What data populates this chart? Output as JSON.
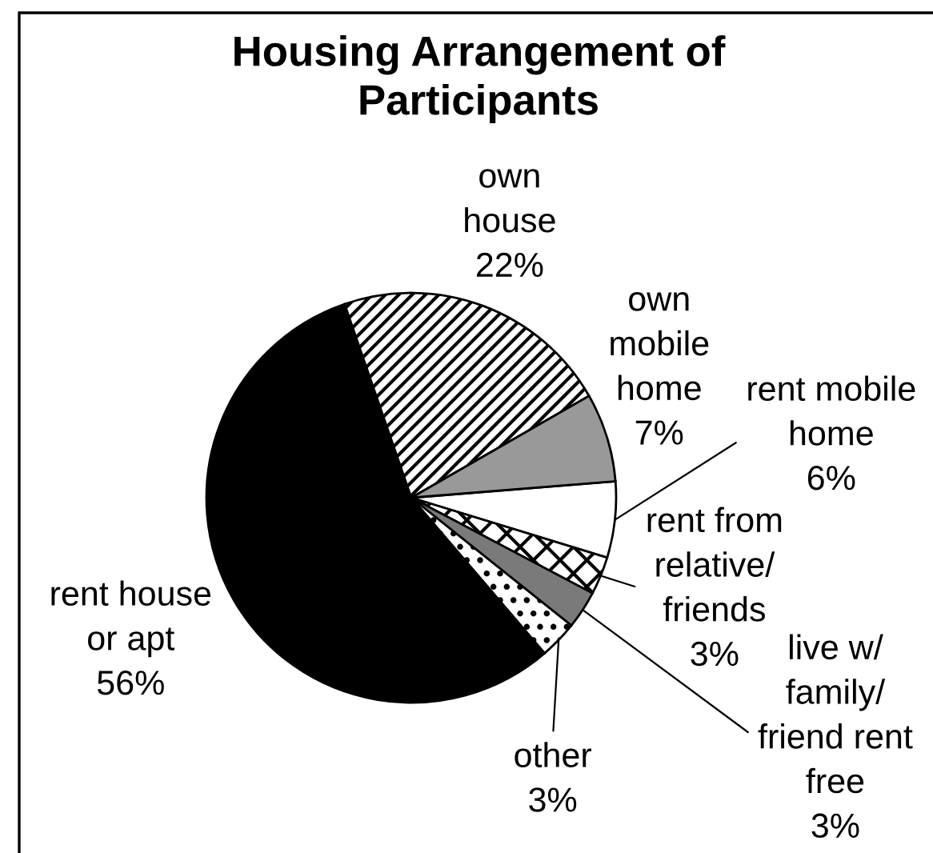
{
  "chart_data": {
    "type": "pie",
    "title": "Housing Arrangement of\nParticipants",
    "categories": [
      "rent mobile\nhome",
      "rent from\nrelative/\nfriends",
      "live w/\nfamily/\nfriend rent\nfree",
      "other",
      "rent house\nor apt",
      "own\nhouse",
      "own\nmobile\nhome"
    ],
    "values": [
      6,
      3,
      3,
      3,
      56,
      22,
      7
    ],
    "value_labels": [
      "6%",
      "3%",
      "3%",
      "3%",
      "56%",
      "22%",
      "7%"
    ],
    "colors": [
      "#ffffff",
      "#ffffff",
      "#7a7a7a",
      "#ffffff",
      "#000000",
      "#ffffff",
      "#999999"
    ]
  }
}
